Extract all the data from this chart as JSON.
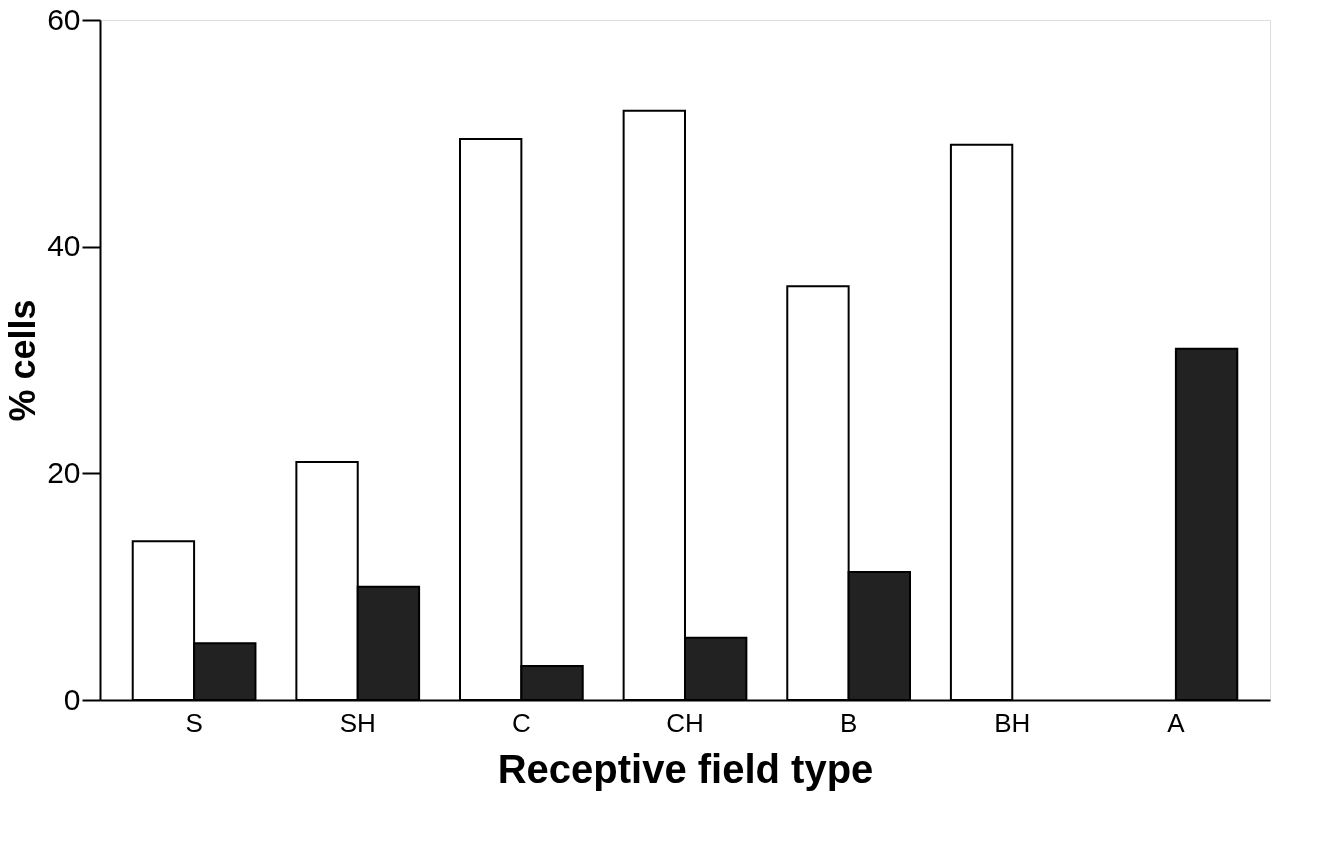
{
  "chart_data": {
    "type": "bar",
    "xlabel": "Receptive field type",
    "ylabel": "% cells",
    "categories": [
      "S",
      "SH",
      "C",
      "CH",
      "B",
      "BH",
      "A"
    ],
    "series": [
      {
        "color": "#ffffff",
        "values": [
          14,
          21,
          49.5,
          52,
          36.5,
          49,
          null
        ]
      },
      {
        "color": "#222222",
        "values": [
          5,
          10,
          3,
          5.5,
          11.3,
          null,
          31
        ]
      }
    ],
    "ylim": [
      0,
      60
    ],
    "yticks": [
      0,
      20,
      40,
      60
    ],
    "grid": false,
    "legend": false
  }
}
